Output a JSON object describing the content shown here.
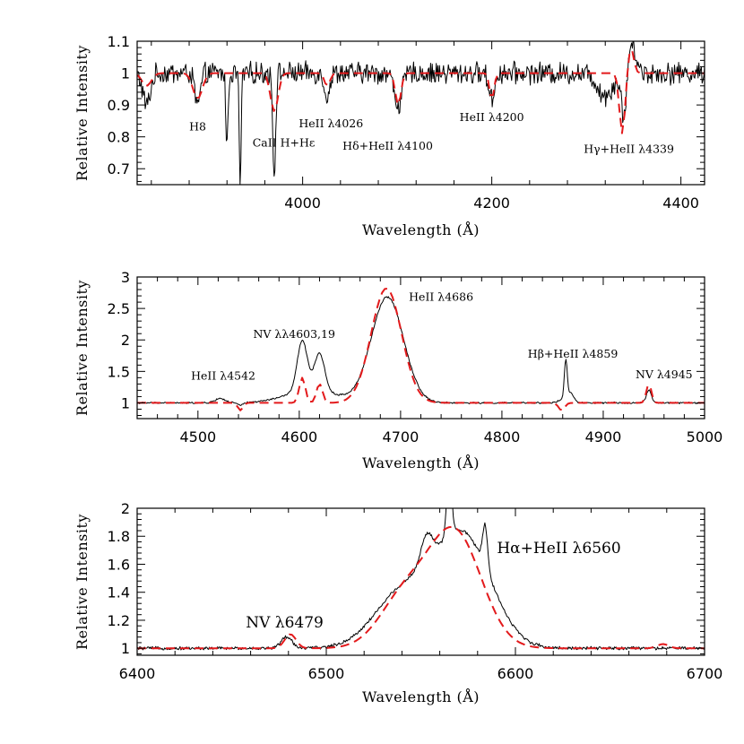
{
  "colors": {
    "observed": "#000000",
    "model": "#e31a1c",
    "background": "#ffffff"
  },
  "chart_data": [
    {
      "type": "line",
      "xlabel": "Wavelength (Å)",
      "ylabel": "Relative Intensity",
      "xlim": [
        3825,
        4425
      ],
      "ylim": [
        0.65,
        1.1
      ],
      "x_ticks": [
        4000,
        4200,
        4400
      ],
      "y_ticks": [
        0.7,
        0.8,
        0.9,
        1,
        1.1
      ],
      "grid": false,
      "series": [
        {
          "style": "observed spectrum (solid black)",
          "continuum": 1.0,
          "noise": 0.03,
          "features": [
            [
              3835,
              -0.1,
              4
            ],
            [
              3889,
              -0.1,
              3
            ],
            [
              3920,
              -0.23,
              1.2
            ],
            [
              3934,
              -0.35,
              1.0
            ],
            [
              3970,
              -0.32,
              1.5
            ],
            [
              4026,
              -0.07,
              3
            ],
            [
              4101,
              -0.1,
              4
            ],
            [
              4200,
              -0.08,
              3
            ],
            [
              4320,
              -0.07,
              8
            ],
            [
              4340,
              -0.14,
              3
            ],
            [
              4346,
              0.09,
              3
            ],
            [
              4352,
              0.05,
              3
            ]
          ]
        },
        {
          "style": "model spectrum (dashed red)",
          "continuum": 1.0,
          "noise": 0,
          "features": [
            [
              3835,
              -0.04,
              5
            ],
            [
              3889,
              -0.08,
              5
            ],
            [
              3970,
              -0.12,
              4
            ],
            [
              4026,
              -0.04,
              3
            ],
            [
              4101,
              -0.1,
              3
            ],
            [
              4200,
              -0.08,
              2.5
            ],
            [
              4338,
              -0.19,
              3
            ],
            [
              4347,
              0.08,
              3
            ]
          ]
        }
      ],
      "annotations": [
        {
          "text": "H8",
          "x": 3889,
          "y": 0.82,
          "size": "small"
        },
        {
          "text": "CaII H+Hε",
          "x": 3980,
          "y": 0.77,
          "size": "small"
        },
        {
          "text": "HeII λ4026",
          "x": 4030,
          "y": 0.83,
          "size": "small"
        },
        {
          "text": "Hδ+HeII λ4100",
          "x": 4090,
          "y": 0.76,
          "size": "small"
        },
        {
          "text": "HeII λ4200",
          "x": 4200,
          "y": 0.85,
          "size": "small"
        },
        {
          "text": "Hγ+HeII λ4339",
          "x": 4345,
          "y": 0.75,
          "size": "small"
        }
      ]
    },
    {
      "type": "line",
      "xlabel": "Wavelength (Å)",
      "ylabel": "Relative Intensity",
      "xlim": [
        4440,
        5000
      ],
      "ylim": [
        0.75,
        3.0
      ],
      "x_ticks": [
        4500,
        4600,
        4700,
        4800,
        4900,
        5000
      ],
      "y_ticks": [
        1,
        1.5,
        2,
        2.5,
        3
      ],
      "grid": false,
      "series": [
        {
          "style": "observed spectrum (solid black)",
          "continuum": 1.0,
          "noise": 0.012,
          "features": [
            [
              4522,
              0.07,
              5
            ],
            [
              4542,
              -0.04,
              3
            ],
            [
              4603,
              0.8,
              5
            ],
            [
              4620,
              0.6,
              5
            ],
            [
              4612,
              0.2,
              25
            ],
            [
              4687,
              1.68,
              16
            ],
            [
              4859,
              0.04,
              4
            ],
            [
              4863,
              0.63,
              1.5
            ],
            [
              4868,
              0.15,
              3
            ],
            [
              4945,
              0.2,
              2.5
            ]
          ]
        },
        {
          "style": "model spectrum (dashed red)",
          "continuum": 1.0,
          "noise": 0,
          "features": [
            [
              4542,
              -0.12,
              2.5
            ],
            [
              4603,
              0.4,
              3
            ],
            [
              4620,
              0.3,
              3
            ],
            [
              4686,
              1.82,
              15
            ],
            [
              4859,
              -0.12,
              3
            ],
            [
              4945,
              0.3,
              2.5
            ]
          ]
        }
      ],
      "annotations": [
        {
          "text": "HeII λ4542",
          "x": 4525,
          "y": 1.37,
          "size": "small"
        },
        {
          "text": "NV λλ4603,19",
          "x": 4595,
          "y": 2.03,
          "size": "small"
        },
        {
          "text": "HeII λ4686",
          "x": 4740,
          "y": 2.62,
          "size": "small"
        },
        {
          "text": "Hβ+HeII λ4859",
          "x": 4870,
          "y": 1.72,
          "size": "small"
        },
        {
          "text": "NV λ4945",
          "x": 4960,
          "y": 1.39,
          "size": "small"
        }
      ]
    },
    {
      "type": "line",
      "xlabel": "Wavelength (Å)",
      "ylabel": "Relative Intensity",
      "xlim": [
        6400,
        6700
      ],
      "ylim": [
        0.95,
        2.0
      ],
      "x_ticks": [
        6400,
        6500,
        6600,
        6700
      ],
      "y_ticks": [
        1,
        1.2,
        1.4,
        1.6,
        1.8,
        2
      ],
      "grid": false,
      "series": [
        {
          "style": "observed spectrum (solid black)",
          "continuum": 1.0,
          "noise": 0.01,
          "features": [
            [
              6479,
              0.08,
              3
            ],
            [
              6540,
              0.38,
              15
            ],
            [
              6572,
              0.8,
              15
            ],
            [
              6553,
              0.2,
              3
            ],
            [
              6565,
              0.55,
              1.2
            ],
            [
              6584,
              0.3,
              1.3
            ]
          ]
        },
        {
          "style": "model spectrum (dashed red)",
          "continuum": 1.0,
          "noise": 0,
          "features": [
            [
              6481,
              0.1,
              3
            ],
            [
              6541,
              0.35,
              13
            ],
            [
              6568,
              0.82,
              14
            ],
            [
              6678,
              0.03,
              3
            ]
          ]
        }
      ],
      "annotations": [
        {
          "text": "NV λ6479",
          "x": 6478,
          "y": 1.15,
          "size": "large"
        },
        {
          "text": "Hα+HeII λ6560",
          "x": 6623,
          "y": 1.68,
          "size": "large"
        }
      ]
    }
  ]
}
